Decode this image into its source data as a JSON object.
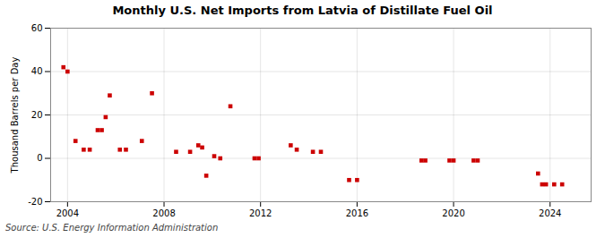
{
  "chart_data": {
    "type": "scatter",
    "title": "Monthly U.S. Net Imports from Latvia of Distillate Fuel Oil",
    "ylabel": "Thousand Barrels per Day",
    "annotations": [
      "Source: U.S. Energy Information Administration"
    ],
    "color": "#cc0000",
    "marker": "square",
    "grid": true,
    "xlim": [
      2003.3,
      2025.7
    ],
    "xticks": [
      2004,
      2008,
      2012,
      2016,
      2020,
      2024
    ],
    "ylim": [
      -20,
      60
    ],
    "yticks": [
      -20,
      0,
      20,
      40,
      60
    ],
    "x": [
      2003.83,
      2004.0,
      2004.33,
      2004.67,
      2004.92,
      2005.25,
      2005.42,
      2005.58,
      2005.75,
      2006.17,
      2006.42,
      2007.08,
      2007.5,
      2008.5,
      2009.08,
      2009.42,
      2009.58,
      2009.75,
      2010.08,
      2010.33,
      2010.75,
      2011.75,
      2011.92,
      2013.25,
      2013.5,
      2014.17,
      2014.5,
      2015.67,
      2016.0,
      2018.67,
      2018.83,
      2019.83,
      2020.0,
      2020.83,
      2021.0,
      2023.5,
      2023.67,
      2023.83,
      2024.17,
      2024.5
    ],
    "values": [
      42,
      40,
      8,
      4,
      4,
      13,
      13,
      19,
      29,
      4,
      4,
      8,
      30,
      3,
      3,
      6,
      5,
      -8,
      1,
      0,
      24,
      0,
      0,
      6,
      4,
      3,
      3,
      -10,
      -10,
      -1,
      -1,
      -1,
      -1,
      -1,
      -1,
      -7,
      -12,
      -12,
      -12,
      -12
    ]
  }
}
